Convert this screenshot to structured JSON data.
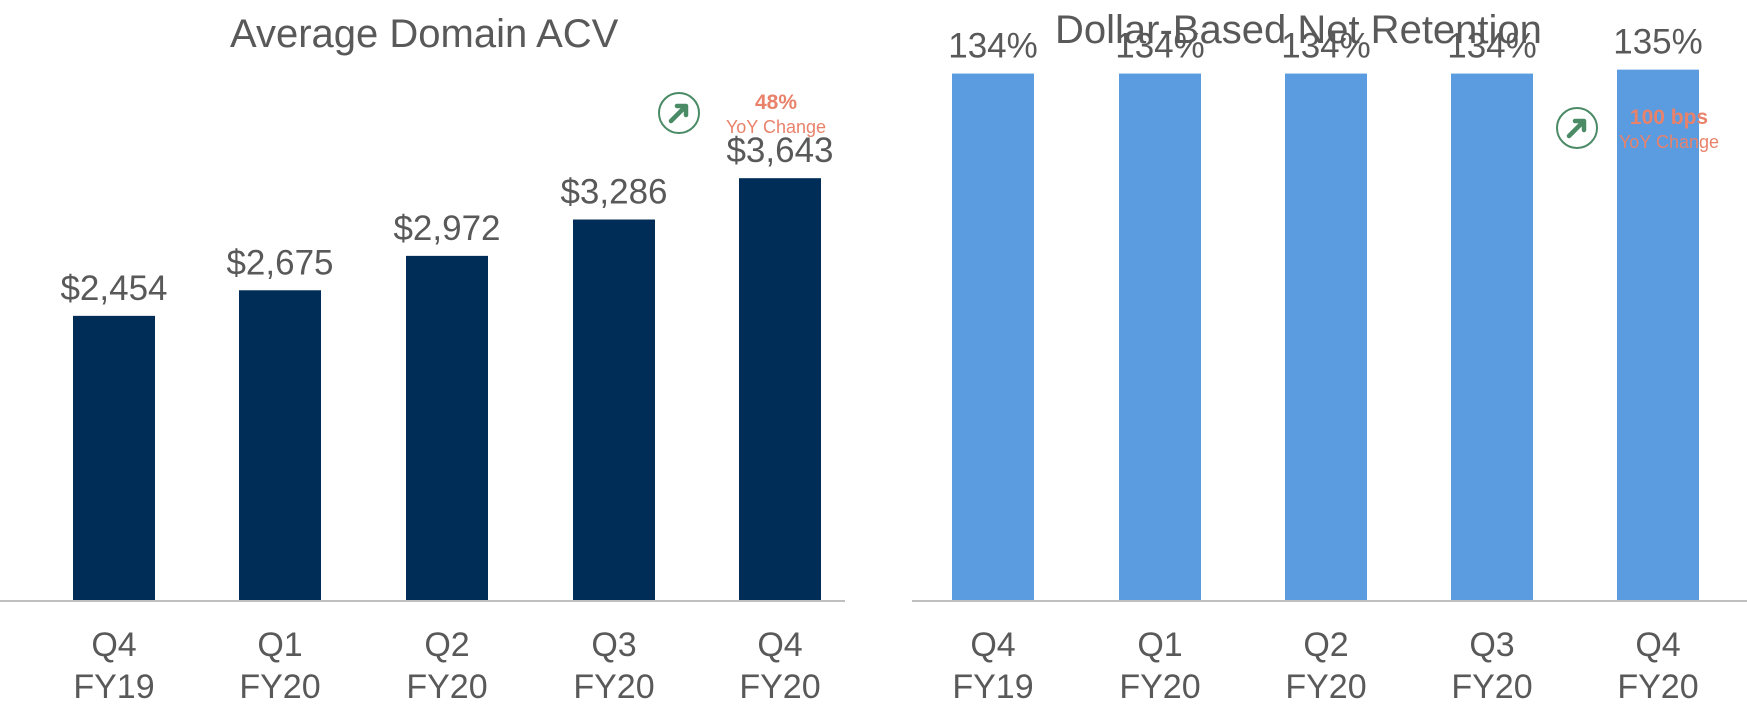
{
  "chart_data": [
    {
      "type": "bar",
      "title": "Average Domain ACV",
      "categories": [
        "Q4\nFY19",
        "Q1\nFY20",
        "Q2\nFY20",
        "Q3\nFY20",
        "Q4\nFY20"
      ],
      "values": [
        2454,
        2675,
        2972,
        3286,
        3643
      ],
      "data_labels": [
        "$2,454",
        "$2,675",
        "$2,972",
        "$3,286",
        "$3,643"
      ],
      "ylim": [
        0,
        4750
      ],
      "bar_color": "#002d57",
      "grid": false,
      "badge": {
        "icon": "arrow-up-right-icon",
        "value": "48%",
        "label": "YoY Change"
      }
    },
    {
      "type": "bar",
      "title": "Dollar-Based Net Retention",
      "categories": [
        "Q4\nFY19",
        "Q1\nFY20",
        "Q2\nFY20",
        "Q3\nFY20",
        "Q4\nFY20"
      ],
      "values": [
        134,
        134,
        134,
        134,
        135
      ],
      "data_labels": [
        "134%",
        "134%",
        "134%",
        "134%",
        "135%"
      ],
      "ylim": [
        0,
        140
      ],
      "bar_color": "#5b9bdf",
      "grid": false,
      "badge": {
        "icon": "arrow-up-right-icon",
        "value": "100 bps",
        "label": "YoY Change"
      }
    }
  ],
  "colors": {
    "axis": "#bfbfbf",
    "text": "#595959",
    "badge_text": "#e9826b",
    "badge_icon": "#4a8a65"
  }
}
